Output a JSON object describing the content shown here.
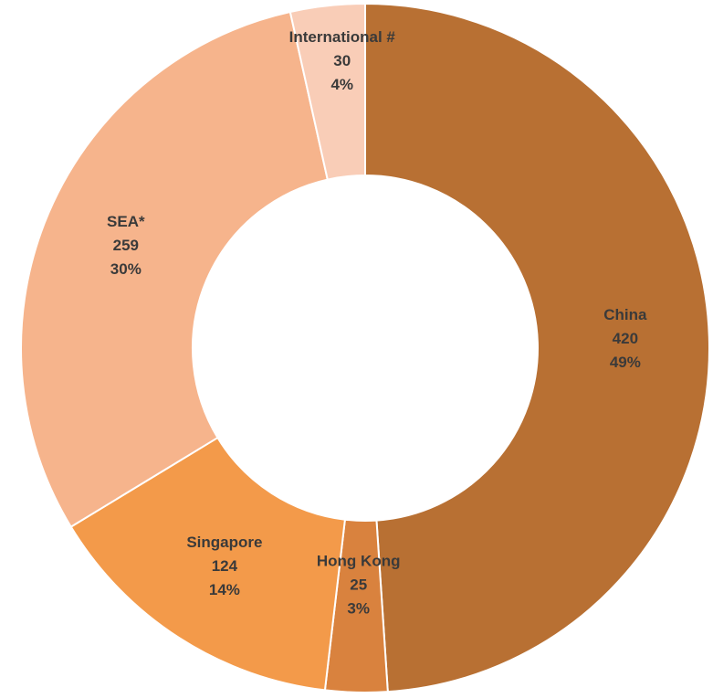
{
  "chart_data": {
    "type": "donut",
    "categories": [
      "China",
      "Hong Kong",
      "Singapore",
      "SEA*",
      "International #"
    ],
    "values": [
      420,
      25,
      124,
      259,
      30
    ],
    "percent_labels": [
      "49%",
      "3%",
      "14%",
      "30%",
      "4%"
    ],
    "colors": [
      "#b87033",
      "#d9823e",
      "#f39a4a",
      "#f6b48c",
      "#f9cdb7"
    ]
  }
}
